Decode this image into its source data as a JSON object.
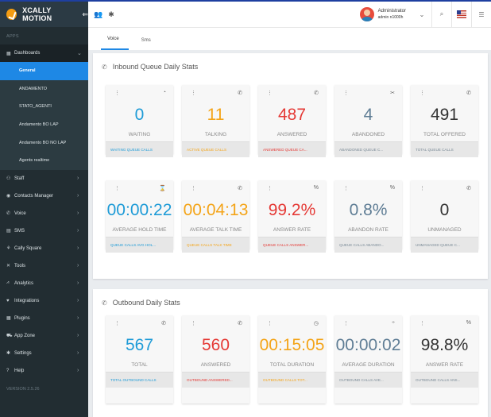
{
  "colors": {
    "blue": "#1e9bd7",
    "orange": "#f4a418",
    "red": "#e53935",
    "slate": "#5f7d95",
    "dark": "#333333",
    "grey_link": "#7a8a96"
  },
  "app": {
    "title": "XCALLY MOTION",
    "toggle_icon": "menu-toggle-icon"
  },
  "sidebar": {
    "section_label": "APPS",
    "dashboards": {
      "label": "Dashboards",
      "icon": "dashboard-icon"
    },
    "subitems": [
      "General",
      "ANDAMENTO",
      "STATO_AGENTI",
      "Andamento BO LAP",
      "Andamento BO NO LAP",
      "Agents realtime"
    ],
    "items": [
      {
        "label": "Staff",
        "icon": "people-icon"
      },
      {
        "label": "Contacts Manager",
        "icon": "contacts-icon"
      },
      {
        "label": "Voice",
        "icon": "phone-icon"
      },
      {
        "label": "SMS",
        "icon": "sms-icon"
      },
      {
        "label": "Cally Square",
        "icon": "square-icon"
      },
      {
        "label": "Tools",
        "icon": "tools-icon"
      },
      {
        "label": "Analytics",
        "icon": "analytics-icon"
      },
      {
        "label": "Integrations",
        "icon": "integrations-icon"
      },
      {
        "label": "Plugins",
        "icon": "plugins-icon"
      },
      {
        "label": "App Zone",
        "icon": "cart-icon"
      },
      {
        "label": "Settings",
        "icon": "gear-icon"
      },
      {
        "label": "Help",
        "icon": "help-icon"
      }
    ],
    "version": "VERSION 2.5.26"
  },
  "user": {
    "name": "Administrator",
    "id": "admin n1000h"
  },
  "tabs": [
    "Voice",
    "Sms"
  ],
  "inbound": {
    "title": "Inbound Queue Daily Stats",
    "cards": [
      {
        "value": "0",
        "label": "WAITING",
        "footer": "WAITING QUEUE CALLS",
        "color": "blue",
        "icon": "hourglass-circle-icon"
      },
      {
        "value": "11",
        "label": "TALKING",
        "footer": "ACTIVE QUEUE CALLS",
        "color": "orange",
        "icon": "phone-in-talk-icon"
      },
      {
        "value": "487",
        "label": "ANSWERED",
        "footer": "ANSWERED QUEUE CA...",
        "color": "red",
        "icon": "phone-icon"
      },
      {
        "value": "4",
        "label": "ABANDONED",
        "footer": "ABANDONED QUEUE C...",
        "color": "slate",
        "icon": "phone-missed-icon"
      },
      {
        "value": "491",
        "label": "TOTAL OFFERED",
        "footer": "TOTAL QUEUE CALLS",
        "color": "dark",
        "icon": "phone-forward-icon"
      },
      {
        "value": "00:00:22",
        "label": "AVERAGE HOLD TIME",
        "footer": "QUEUE CALLS AVG HOL...",
        "color": "blue",
        "icon": "hourglass-icon"
      },
      {
        "value": "00:04:13",
        "label": "AVERAGE TALK TIME",
        "footer": "QUEUE CALLS TALK TIME",
        "color": "orange",
        "icon": "phone-in-talk-icon"
      },
      {
        "value": "99.2%",
        "label": "ANSWER RATE",
        "footer": "QUEUE CALLS ANSWER...",
        "color": "red",
        "icon": "percent-icon"
      },
      {
        "value": "0.8%",
        "label": "ABANDON RATE",
        "footer": "QUEUE CALLS ABANDO...",
        "color": "slate",
        "icon": "percent-icon"
      },
      {
        "value": "0",
        "label": "UNMANAGED",
        "footer": "UNMANAGED QUEUE C...",
        "color": "dark",
        "icon": "phone-icon"
      }
    ]
  },
  "outbound": {
    "title": "Outbound Daily Stats",
    "cards": [
      {
        "value": "567",
        "label": "TOTAL",
        "footer": "TOTAL OUTBOUND CALLS",
        "color": "blue",
        "icon": "phone-forward-icon"
      },
      {
        "value": "560",
        "label": "ANSWERED",
        "footer": "OUTBOUND ANSWERED...",
        "color": "red",
        "icon": "phone-icon"
      },
      {
        "value": "00:15:05",
        "label": "TOTAL DURATION",
        "footer": "OUTBOUND CALLS TOT...",
        "color": "orange",
        "icon": "clock-icon"
      },
      {
        "value": "00:00:02",
        "label": "AVERAGE DURATION",
        "footer": "OUTBOUND CALLS AVE...",
        "color": "slate",
        "icon": "divide-icon"
      },
      {
        "value": "98.8%",
        "label": "ANSWER RATE",
        "footer": "OUTBOUND CALLS ANS...",
        "color": "dark",
        "icon": "percent-icon"
      }
    ]
  }
}
